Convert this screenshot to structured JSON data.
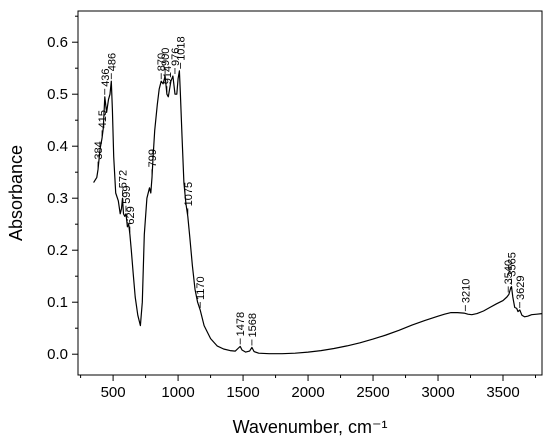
{
  "chart_data": {
    "type": "line",
    "xlabel": "Wavenumber, cm⁻¹",
    "ylabel": "Absorbance",
    "xlim": [
      230,
      3800
    ],
    "ylim": [
      -0.04,
      0.66
    ],
    "x_ticks": [
      500,
      1000,
      1500,
      2000,
      2500,
      3000,
      3500
    ],
    "x_tick_labels": [
      "500",
      "1000",
      "1500",
      "2000",
      "2500",
      "3000",
      "3500"
    ],
    "y_ticks": [
      0.0,
      0.1,
      0.2,
      0.3,
      0.4,
      0.5,
      0.6
    ],
    "y_tick_labels": [
      "0.0",
      "0.1",
      "0.2",
      "0.3",
      "0.4",
      "0.5",
      "0.6"
    ],
    "grid": false,
    "legend": "none",
    "line_color": "#000000",
    "series": [
      {
        "x": [
          350,
          375,
          384,
          400,
          415,
          425,
          436,
          450,
          465,
          476,
          486,
          495,
          505,
          520,
          540,
          555,
          565,
          572,
          580,
          590,
          599,
          610,
          620,
          629,
          640,
          655,
          670,
          690,
          710,
          725,
          740,
          760,
          780,
          790,
          799,
          808,
          820,
          840,
          855,
          870,
          885,
          900,
          914,
          925,
          945,
          960,
          976,
          990,
          1000,
          1010,
          1018,
          1030,
          1045,
          1060,
          1075,
          1090,
          1110,
          1130,
          1150,
          1170,
          1200,
          1250,
          1300,
          1350,
          1400,
          1440,
          1465,
          1478,
          1492,
          1520,
          1550,
          1568,
          1585,
          1620,
          1700,
          1800,
          1900,
          2000,
          2100,
          2200,
          2300,
          2400,
          2500,
          2600,
          2700,
          2800,
          2900,
          3000,
          3050,
          3100,
          3150,
          3200,
          3230,
          3260,
          3300,
          3350,
          3400,
          3450,
          3500,
          3530,
          3545,
          3560,
          3565,
          3575,
          3590,
          3605,
          3615,
          3629,
          3645,
          3665,
          3690,
          3720,
          3760,
          3800
        ],
        "y": [
          0.33,
          0.34,
          0.355,
          0.395,
          0.415,
          0.435,
          0.495,
          0.465,
          0.49,
          0.5,
          0.525,
          0.47,
          0.38,
          0.31,
          0.295,
          0.27,
          0.28,
          0.3,
          0.27,
          0.265,
          0.27,
          0.245,
          0.25,
          0.23,
          0.2,
          0.155,
          0.11,
          0.075,
          0.055,
          0.1,
          0.23,
          0.3,
          0.32,
          0.31,
          0.34,
          0.38,
          0.43,
          0.48,
          0.51,
          0.525,
          0.52,
          0.535,
          0.5,
          0.495,
          0.525,
          0.535,
          0.5,
          0.5,
          0.53,
          0.545,
          0.5,
          0.42,
          0.33,
          0.29,
          0.265,
          0.225,
          0.17,
          0.125,
          0.1,
          0.085,
          0.055,
          0.03,
          0.016,
          0.01,
          0.007,
          0.006,
          0.012,
          0.015,
          0.008,
          0.004,
          0.006,
          0.013,
          0.005,
          0.002,
          0.001,
          0.001,
          0.002,
          0.004,
          0.007,
          0.011,
          0.016,
          0.022,
          0.029,
          0.037,
          0.046,
          0.056,
          0.065,
          0.073,
          0.077,
          0.08,
          0.08,
          0.079,
          0.077,
          0.076,
          0.078,
          0.083,
          0.09,
          0.097,
          0.103,
          0.11,
          0.115,
          0.128,
          0.13,
          0.11,
          0.09,
          0.088,
          0.082,
          0.085,
          0.075,
          0.072,
          0.073,
          0.076,
          0.077,
          0.078
        ]
      }
    ],
    "annotations": [
      {
        "label": "384",
        "x": 384,
        "y": 0.355
      },
      {
        "label": "415",
        "x": 415,
        "y": 0.415
      },
      {
        "label": "436",
        "x": 436,
        "y": 0.495
      },
      {
        "label": "486",
        "x": 486,
        "y": 0.525
      },
      {
        "label": "572",
        "x": 572,
        "y": 0.3
      },
      {
        "label": "599",
        "x": 599,
        "y": 0.27
      },
      {
        "label": "629",
        "x": 629,
        "y": 0.23
      },
      {
        "label": "799",
        "x": 799,
        "y": 0.34
      },
      {
        "label": "870",
        "x": 870,
        "y": 0.525
      },
      {
        "label": "900",
        "x": 900,
        "y": 0.535
      },
      {
        "label": "914",
        "x": 914,
        "y": 0.5
      },
      {
        "label": "976",
        "x": 976,
        "y": 0.535
      },
      {
        "label": "1018",
        "x": 1018,
        "y": 0.545
      },
      {
        "label": "1075",
        "x": 1075,
        "y": 0.265
      },
      {
        "label": "1170",
        "x": 1170,
        "y": 0.085
      },
      {
        "label": "1478",
        "x": 1478,
        "y": 0.015
      },
      {
        "label": "1568",
        "x": 1568,
        "y": 0.013
      },
      {
        "label": "3210",
        "x": 3210,
        "y": 0.079
      },
      {
        "label": "3540",
        "x": 3540,
        "y": 0.115
      },
      {
        "label": "3565",
        "x": 3565,
        "y": 0.13
      },
      {
        "label": "3629",
        "x": 3629,
        "y": 0.085
      }
    ]
  }
}
